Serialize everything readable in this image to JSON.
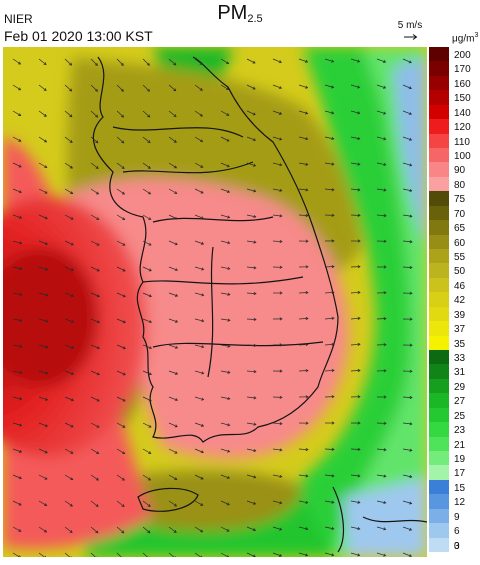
{
  "header": {
    "title_main": "PM",
    "title_sub": "2.5",
    "agency": "NIER",
    "datetime": "Feb 01 2020 13:00 KST",
    "wind_reference": "5 m/s"
  },
  "legend": {
    "unit_base": "μg/m",
    "unit_sup": "3",
    "levels": [
      {
        "label": "200",
        "color": "#5e0000"
      },
      {
        "label": "170",
        "color": "#7a0000"
      },
      {
        "label": "160",
        "color": "#970000"
      },
      {
        "label": "150",
        "color": "#b40000"
      },
      {
        "label": "140",
        "color": "#d30000"
      },
      {
        "label": "120",
        "color": "#ee1c1c"
      },
      {
        "label": "110",
        "color": "#f54444"
      },
      {
        "label": "100",
        "color": "#f76666"
      },
      {
        "label": "90",
        "color": "#f98686"
      },
      {
        "label": "80",
        "color": "#faa0a0"
      },
      {
        "label": "75",
        "color": "#524c08"
      },
      {
        "label": "70",
        "color": "#6a620a"
      },
      {
        "label": "65",
        "color": "#817810"
      },
      {
        "label": "60",
        "color": "#978e16"
      },
      {
        "label": "55",
        "color": "#aca31a"
      },
      {
        "label": "50",
        "color": "#bcb41f"
      },
      {
        "label": "46",
        "color": "#cbc31c"
      },
      {
        "label": "42",
        "color": "#d7d015"
      },
      {
        "label": "39",
        "color": "#e1da10"
      },
      {
        "label": "37",
        "color": "#ece60a"
      },
      {
        "label": "35",
        "color": "#f5f200"
      },
      {
        "label": "33",
        "color": "#0c6a12"
      },
      {
        "label": "31",
        "color": "#118418"
      },
      {
        "label": "29",
        "color": "#169e1f"
      },
      {
        "label": "27",
        "color": "#1cb726"
      },
      {
        "label": "25",
        "color": "#24c830"
      },
      {
        "label": "23",
        "color": "#34d840"
      },
      {
        "label": "21",
        "color": "#4fe35a"
      },
      {
        "label": "19",
        "color": "#74ec7c"
      },
      {
        "label": "17",
        "color": "#a3f4a8"
      },
      {
        "label": "15",
        "color": "#3c7fd8"
      },
      {
        "label": "12",
        "color": "#5996e0"
      },
      {
        "label": "9",
        "color": "#7cafe8"
      },
      {
        "label": "6",
        "color": "#9fc8ef"
      },
      {
        "label": "3",
        "color": "#bfdcf5"
      },
      {
        "label": "0",
        "color": ""
      }
    ]
  }
}
